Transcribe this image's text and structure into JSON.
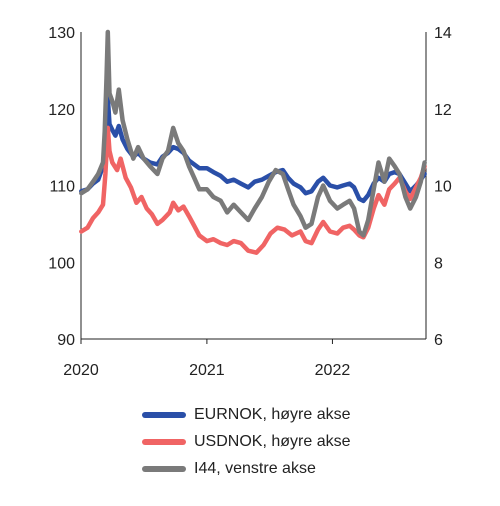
{
  "chart_data": {
    "type": "line",
    "left_axis": {
      "ylim": [
        90,
        130
      ],
      "ticks": [
        "90",
        "100",
        "110",
        "120",
        "130"
      ]
    },
    "right_axis": {
      "ylim": [
        6,
        14
      ],
      "ticks": [
        "6",
        "8",
        "10",
        "12",
        "14"
      ]
    },
    "x_axis": {
      "xlim": [
        "2020-01-01",
        "2022-09-30"
      ],
      "ticks": [
        "2020",
        "2021",
        "2022"
      ]
    },
    "grid": false,
    "legend_position": "bottom",
    "series": [
      {
        "name": "EURNOK, høyre akse",
        "axis": "right",
        "color": "#2a4fa8",
        "points": [
          [
            "2020-01-02",
            9.85
          ],
          [
            "2020-01-20",
            9.9
          ],
          [
            "2020-02-05",
            10.05
          ],
          [
            "2020-02-20",
            10.15
          ],
          [
            "2020-03-05",
            10.5
          ],
          [
            "2020-03-10",
            11.0
          ],
          [
            "2020-03-15",
            11.6
          ],
          [
            "2020-03-19",
            12.3
          ],
          [
            "2020-03-24",
            11.6
          ],
          [
            "2020-04-01",
            11.45
          ],
          [
            "2020-04-10",
            11.3
          ],
          [
            "2020-04-20",
            11.55
          ],
          [
            "2020-05-01",
            11.2
          ],
          [
            "2020-05-15",
            10.95
          ],
          [
            "2020-06-01",
            10.75
          ],
          [
            "2020-06-15",
            10.85
          ],
          [
            "2020-07-01",
            10.7
          ],
          [
            "2020-07-20",
            10.6
          ],
          [
            "2020-08-10",
            10.55
          ],
          [
            "2020-08-25",
            10.75
          ],
          [
            "2020-09-10",
            10.85
          ],
          [
            "2020-09-25",
            11.0
          ],
          [
            "2020-10-10",
            10.95
          ],
          [
            "2020-10-25",
            10.85
          ],
          [
            "2020-11-10",
            10.65
          ],
          [
            "2020-11-25",
            10.55
          ],
          [
            "2020-12-10",
            10.45
          ],
          [
            "2021-01-01",
            10.45
          ],
          [
            "2021-01-20",
            10.35
          ],
          [
            "2021-02-10",
            10.25
          ],
          [
            "2021-03-01",
            10.1
          ],
          [
            "2021-03-20",
            10.15
          ],
          [
            "2021-04-10",
            10.05
          ],
          [
            "2021-05-01",
            9.95
          ],
          [
            "2021-05-20",
            10.1
          ],
          [
            "2021-06-10",
            10.15
          ],
          [
            "2021-06-30",
            10.25
          ],
          [
            "2021-07-20",
            10.35
          ],
          [
            "2021-08-10",
            10.4
          ],
          [
            "2021-08-25",
            10.2
          ],
          [
            "2021-09-10",
            10.05
          ],
          [
            "2021-09-30",
            9.95
          ],
          [
            "2021-10-15",
            9.8
          ],
          [
            "2021-11-01",
            9.85
          ],
          [
            "2021-11-20",
            10.1
          ],
          [
            "2021-12-05",
            10.2
          ],
          [
            "2021-12-25",
            10.0
          ],
          [
            "2022-01-15",
            9.95
          ],
          [
            "2022-02-01",
            10.0
          ],
          [
            "2022-02-20",
            10.05
          ],
          [
            "2022-03-05",
            9.95
          ],
          [
            "2022-03-20",
            9.65
          ],
          [
            "2022-04-01",
            9.6
          ],
          [
            "2022-04-15",
            9.75
          ],
          [
            "2022-05-01",
            10.05
          ],
          [
            "2022-05-15",
            10.2
          ],
          [
            "2022-06-01",
            10.1
          ],
          [
            "2022-06-15",
            10.3
          ],
          [
            "2022-07-01",
            10.35
          ],
          [
            "2022-07-15",
            10.3
          ],
          [
            "2022-08-01",
            10.05
          ],
          [
            "2022-08-15",
            9.85
          ],
          [
            "2022-09-01",
            10.0
          ],
          [
            "2022-09-15",
            10.15
          ],
          [
            "2022-09-26",
            10.3
          ]
        ]
      },
      {
        "name": "USDNOK, høyre akse",
        "axis": "right",
        "color": "#f06464",
        "points": [
          [
            "2020-01-02",
            8.8
          ],
          [
            "2020-01-20",
            8.9
          ],
          [
            "2020-02-05",
            9.15
          ],
          [
            "2020-02-20",
            9.3
          ],
          [
            "2020-03-05",
            9.5
          ],
          [
            "2020-03-12",
            10.3
          ],
          [
            "2020-03-19",
            11.5
          ],
          [
            "2020-03-24",
            10.9
          ],
          [
            "2020-04-01",
            10.6
          ],
          [
            "2020-04-15",
            10.4
          ],
          [
            "2020-04-25",
            10.7
          ],
          [
            "2020-05-10",
            10.2
          ],
          [
            "2020-05-25",
            9.95
          ],
          [
            "2020-06-10",
            9.55
          ],
          [
            "2020-06-25",
            9.7
          ],
          [
            "2020-07-10",
            9.4
          ],
          [
            "2020-07-25",
            9.25
          ],
          [
            "2020-08-10",
            9.0
          ],
          [
            "2020-08-25",
            9.1
          ],
          [
            "2020-09-15",
            9.3
          ],
          [
            "2020-09-25",
            9.55
          ],
          [
            "2020-10-10",
            9.35
          ],
          [
            "2020-10-25",
            9.45
          ],
          [
            "2020-11-10",
            9.2
          ],
          [
            "2020-11-25",
            8.95
          ],
          [
            "2020-12-10",
            8.7
          ],
          [
            "2021-01-01",
            8.55
          ],
          [
            "2021-01-20",
            8.6
          ],
          [
            "2021-02-10",
            8.5
          ],
          [
            "2021-03-01",
            8.45
          ],
          [
            "2021-03-20",
            8.55
          ],
          [
            "2021-04-10",
            8.5
          ],
          [
            "2021-05-01",
            8.3
          ],
          [
            "2021-05-25",
            8.25
          ],
          [
            "2021-06-15",
            8.45
          ],
          [
            "2021-07-05",
            8.75
          ],
          [
            "2021-07-25",
            8.9
          ],
          [
            "2021-08-15",
            8.85
          ],
          [
            "2021-09-05",
            8.7
          ],
          [
            "2021-09-30",
            8.8
          ],
          [
            "2021-10-15",
            8.55
          ],
          [
            "2021-11-01",
            8.5
          ],
          [
            "2021-11-20",
            8.85
          ],
          [
            "2021-12-05",
            9.05
          ],
          [
            "2021-12-25",
            8.8
          ],
          [
            "2022-01-15",
            8.75
          ],
          [
            "2022-02-01",
            8.9
          ],
          [
            "2022-02-20",
            8.95
          ],
          [
            "2022-03-05",
            8.85
          ],
          [
            "2022-03-20",
            8.7
          ],
          [
            "2022-04-01",
            8.65
          ],
          [
            "2022-04-15",
            8.9
          ],
          [
            "2022-05-01",
            9.4
          ],
          [
            "2022-05-15",
            9.75
          ],
          [
            "2022-06-01",
            9.5
          ],
          [
            "2022-06-15",
            9.9
          ],
          [
            "2022-07-01",
            10.05
          ],
          [
            "2022-07-15",
            10.2
          ],
          [
            "2022-08-01",
            9.85
          ],
          [
            "2022-08-15",
            9.65
          ],
          [
            "2022-09-01",
            9.95
          ],
          [
            "2022-09-15",
            10.2
          ],
          [
            "2022-09-26",
            10.5
          ]
        ]
      },
      {
        "name": "I44, venstre akse",
        "axis": "left",
        "color": "#7a7a7a",
        "points": [
          [
            "2020-01-02",
            109.0
          ],
          [
            "2020-01-20",
            109.5
          ],
          [
            "2020-02-05",
            110.5
          ],
          [
            "2020-02-20",
            111.5
          ],
          [
            "2020-03-05",
            113.0
          ],
          [
            "2020-03-10",
            117.0
          ],
          [
            "2020-03-15",
            124.0
          ],
          [
            "2020-03-19",
            130.0
          ],
          [
            "2020-03-24",
            122.0
          ],
          [
            "2020-04-01",
            121.0
          ],
          [
            "2020-04-10",
            119.5
          ],
          [
            "2020-04-20",
            122.5
          ],
          [
            "2020-05-01",
            118.5
          ],
          [
            "2020-05-15",
            116.0
          ],
          [
            "2020-06-01",
            113.5
          ],
          [
            "2020-06-15",
            115.0
          ],
          [
            "2020-07-01",
            113.5
          ],
          [
            "2020-07-20",
            112.5
          ],
          [
            "2020-08-10",
            111.5
          ],
          [
            "2020-08-25",
            113.5
          ],
          [
            "2020-09-10",
            114.5
          ],
          [
            "2020-09-25",
            117.5
          ],
          [
            "2020-10-10",
            115.5
          ],
          [
            "2020-10-25",
            114.5
          ],
          [
            "2020-11-10",
            112.5
          ],
          [
            "2020-11-25",
            111.0
          ],
          [
            "2020-12-10",
            109.5
          ],
          [
            "2021-01-01",
            109.5
          ],
          [
            "2021-01-20",
            108.5
          ],
          [
            "2021-02-10",
            108.0
          ],
          [
            "2021-03-01",
            106.5
          ],
          [
            "2021-03-20",
            107.5
          ],
          [
            "2021-04-10",
            106.5
          ],
          [
            "2021-05-01",
            105.5
          ],
          [
            "2021-05-20",
            107.0
          ],
          [
            "2021-06-10",
            108.5
          ],
          [
            "2021-06-30",
            110.5
          ],
          [
            "2021-07-20",
            112.0
          ],
          [
            "2021-08-10",
            111.5
          ],
          [
            "2021-08-25",
            109.5
          ],
          [
            "2021-09-10",
            107.5
          ],
          [
            "2021-09-30",
            106.0
          ],
          [
            "2021-10-15",
            104.5
          ],
          [
            "2021-11-01",
            105.0
          ],
          [
            "2021-11-20",
            108.5
          ],
          [
            "2021-12-05",
            110.0
          ],
          [
            "2021-12-25",
            108.0
          ],
          [
            "2022-01-15",
            107.0
          ],
          [
            "2022-02-01",
            107.5
          ],
          [
            "2022-02-20",
            108.0
          ],
          [
            "2022-03-05",
            107.0
          ],
          [
            "2022-03-20",
            104.0
          ],
          [
            "2022-04-01",
            103.5
          ],
          [
            "2022-04-15",
            105.5
          ],
          [
            "2022-05-01",
            109.5
          ],
          [
            "2022-05-15",
            113.0
          ],
          [
            "2022-06-01",
            110.5
          ],
          [
            "2022-06-15",
            113.5
          ],
          [
            "2022-07-01",
            112.5
          ],
          [
            "2022-07-15",
            111.5
          ],
          [
            "2022-08-01",
            108.5
          ],
          [
            "2022-08-15",
            107.0
          ],
          [
            "2022-09-01",
            108.5
          ],
          [
            "2022-09-15",
            110.5
          ],
          [
            "2022-09-26",
            113.0
          ]
        ]
      }
    ]
  }
}
